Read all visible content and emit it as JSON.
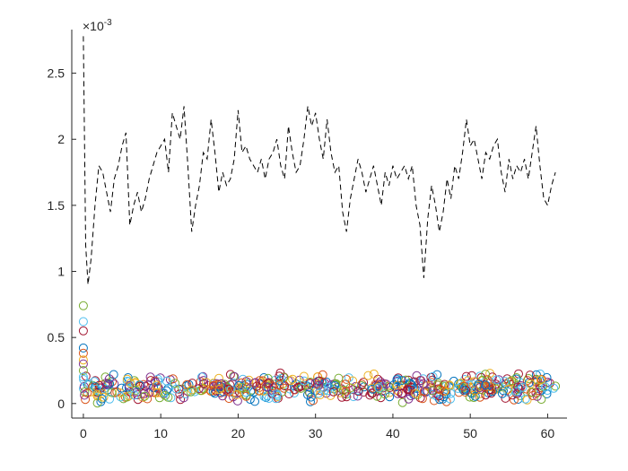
{
  "chart_data": {
    "type": "line",
    "title": "",
    "xlabel": "",
    "ylabel": "",
    "y_exponent_label": "×10",
    "y_exponent_power": "-3",
    "xlim": [
      -1.5,
      62.5
    ],
    "ylim": [
      -0.11,
      2.83
    ],
    "x_ticks": [
      0,
      10,
      20,
      30,
      40,
      50,
      60
    ],
    "x_tick_labels": [
      "0",
      "10",
      "20",
      "30",
      "40",
      "50",
      "60"
    ],
    "y_ticks": [
      0,
      0.5,
      1,
      1.5,
      2,
      2.5
    ],
    "y_tick_labels": [
      "0",
      "0.5",
      "1",
      "1.5",
      "2",
      "2.5"
    ],
    "grid": false,
    "box": "left-bottom",
    "series": [
      {
        "style": "dashed-line",
        "color": "#000000",
        "x": [
          0,
          0.3,
          0.6,
          1.0,
          1.5,
          2.0,
          2.5,
          3.0,
          3.5,
          4.0,
          4.5,
          5.0,
          5.5,
          6.0,
          6.5,
          7.0,
          7.5,
          8.0,
          8.5,
          9.0,
          9.5,
          10.0,
          10.5,
          11.0,
          11.5,
          12.0,
          12.5,
          13.0,
          13.5,
          14.0,
          14.5,
          15.0,
          15.5,
          16.0,
          16.5,
          17.0,
          17.5,
          18.0,
          18.5,
          19.0,
          19.5,
          20.0,
          20.5,
          21.0,
          21.5,
          22.0,
          22.5,
          23.0,
          23.5,
          24.0,
          24.5,
          25.0,
          25.5,
          26.0,
          26.5,
          27.0,
          27.5,
          28.0,
          28.5,
          29.0,
          29.5,
          30.0,
          30.5,
          31.0,
          31.5,
          32.0,
          32.5,
          33.0,
          33.5,
          34.0,
          34.5,
          35.0,
          35.5,
          36.0,
          36.5,
          37.0,
          37.5,
          38.0,
          38.5,
          39.0,
          39.5,
          40.0,
          40.5,
          41.0,
          41.5,
          42.0,
          42.5,
          43.0,
          43.5,
          44.0,
          44.5,
          45.0,
          45.5,
          46.0,
          46.5,
          47.0,
          47.5,
          48.0,
          48.5,
          49.0,
          49.5,
          50.0,
          50.5,
          51.0,
          51.5,
          52.0,
          52.5,
          53.0,
          53.5,
          54.0,
          54.5,
          55.0,
          55.5,
          56.0,
          56.5,
          57.0,
          57.5,
          58.0,
          58.5,
          59.0,
          59.5,
          60.0,
          60.5,
          61.0
        ],
        "values": [
          2.78,
          1.2,
          0.9,
          1.1,
          1.5,
          1.8,
          1.75,
          1.6,
          1.45,
          1.7,
          1.8,
          1.95,
          2.05,
          1.35,
          1.5,
          1.6,
          1.45,
          1.55,
          1.7,
          1.8,
          1.9,
          1.95,
          2.0,
          1.75,
          2.2,
          2.1,
          2.0,
          2.25,
          1.8,
          1.3,
          1.5,
          1.65,
          1.9,
          1.85,
          2.15,
          1.9,
          1.6,
          1.75,
          1.65,
          1.7,
          1.85,
          2.22,
          1.9,
          1.95,
          1.85,
          1.8,
          1.75,
          1.85,
          1.7,
          1.85,
          1.9,
          2.0,
          1.8,
          1.7,
          2.1,
          1.9,
          1.75,
          1.8,
          2.0,
          2.25,
          2.1,
          2.2,
          2.0,
          1.85,
          2.15,
          1.9,
          1.75,
          1.8,
          1.45,
          1.3,
          1.55,
          1.7,
          1.85,
          1.75,
          1.6,
          1.7,
          1.8,
          1.65,
          1.5,
          1.75,
          1.65,
          1.8,
          1.7,
          1.75,
          1.8,
          1.7,
          1.8,
          1.5,
          1.35,
          0.95,
          1.4,
          1.65,
          1.5,
          1.3,
          1.45,
          1.7,
          1.55,
          1.8,
          1.7,
          1.9,
          2.15,
          1.95,
          2.0,
          1.85,
          1.7,
          1.9,
          1.85,
          1.95,
          2.0,
          1.75,
          1.6,
          1.85,
          1.7,
          1.8,
          1.75,
          1.85,
          1.7,
          1.9,
          2.1,
          1.8,
          1.55,
          1.5,
          1.65,
          1.75
        ]
      }
    ],
    "scatter_markers": {
      "marker": "circle",
      "colors": [
        "#0072BD",
        "#D95319",
        "#EDB120",
        "#7E2F8E",
        "#77AC30",
        "#4DBEEE",
        "#A2142F"
      ],
      "start_values": [
        0.74,
        0.62,
        0.55,
        0.42,
        0.38,
        0.33,
        0.3,
        0.25,
        0.2
      ],
      "baseline_mean": 0.12,
      "baseline_range": [
        0.0,
        0.27
      ],
      "x_range": [
        0,
        61
      ]
    }
  }
}
